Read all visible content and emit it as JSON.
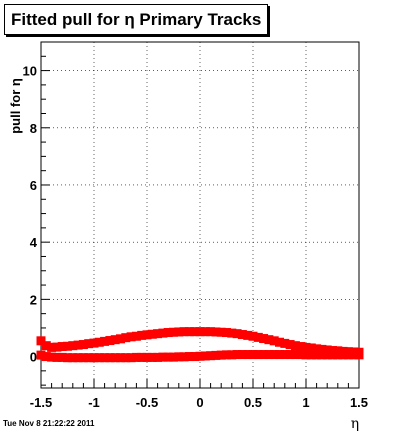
{
  "title": "Fitted pull for η  Primary Tracks",
  "timestamp": "Tue Nov  8 21:22:22 2011",
  "chart_data": {
    "type": "scatter",
    "title": "Fitted pull for η  Primary Tracks",
    "xlabel": "η",
    "ylabel": "pull for η",
    "xlim": [
      -1.5,
      1.5
    ],
    "ylim": [
      -1.1,
      11.0
    ],
    "xticks": [
      -1.5,
      -1,
      -0.5,
      0,
      0.5,
      1,
      1.5
    ],
    "xtick_labels": [
      "-1.5",
      "-1",
      "-0.5",
      "0",
      "0.5",
      "1",
      "1.5"
    ],
    "yticks": [
      0,
      2,
      4,
      6,
      8,
      10
    ],
    "ytick_labels": [
      "0",
      "2",
      "4",
      "6",
      "8",
      "10"
    ],
    "grid": true,
    "marker_color": "#ff0000",
    "series": [
      {
        "x": [
          -1.5,
          -1.45,
          -1.4,
          -1.35,
          -1.3,
          -1.25,
          -1.2,
          -1.15,
          -1.1,
          -1.05,
          -1.0,
          -0.95,
          -0.9,
          -0.85,
          -0.8,
          -0.75,
          -0.7,
          -0.65,
          -0.6,
          -0.55,
          -0.5,
          -0.45,
          -0.4,
          -0.35,
          -0.3,
          -0.25,
          -0.2,
          -0.15,
          -0.1,
          -0.05,
          0.0,
          0.05,
          0.1,
          0.15,
          0.2,
          0.25,
          0.3,
          0.35,
          0.4,
          0.45,
          0.5,
          0.55,
          0.6,
          0.65,
          0.7,
          0.75,
          0.8,
          0.85,
          0.9,
          0.95,
          1.0,
          1.05,
          1.1,
          1.15,
          1.2,
          1.25,
          1.3,
          1.35,
          1.4,
          1.45,
          1.5
        ],
        "y": [
          0.55,
          0.38,
          0.32,
          0.33,
          0.35,
          0.36,
          0.38,
          0.4,
          0.42,
          0.45,
          0.47,
          0.5,
          0.53,
          0.56,
          0.59,
          0.62,
          0.66,
          0.69,
          0.71,
          0.74,
          0.76,
          0.78,
          0.8,
          0.82,
          0.84,
          0.85,
          0.86,
          0.87,
          0.87,
          0.87,
          0.87,
          0.87,
          0.87,
          0.86,
          0.85,
          0.84,
          0.82,
          0.8,
          0.77,
          0.74,
          0.71,
          0.67,
          0.63,
          0.59,
          0.55,
          0.5,
          0.46,
          0.42,
          0.38,
          0.35,
          0.32,
          0.3,
          0.27,
          0.25,
          0.23,
          0.21,
          0.2,
          0.18,
          0.17,
          0.16,
          0.15
        ]
      },
      {
        "x": [
          -1.5,
          -1.45,
          -1.4,
          -1.35,
          -1.3,
          -1.25,
          -1.2,
          -1.15,
          -1.1,
          -1.05,
          -1.0,
          -0.95,
          -0.9,
          -0.85,
          -0.8,
          -0.75,
          -0.7,
          -0.65,
          -0.6,
          -0.55,
          -0.5,
          -0.45,
          -0.4,
          -0.35,
          -0.3,
          -0.25,
          -0.2,
          -0.15,
          -0.1,
          -0.05,
          0.0,
          0.05,
          0.1,
          0.15,
          0.2,
          0.25,
          0.3,
          0.35,
          0.4,
          0.45,
          0.5,
          0.55,
          0.6,
          0.65,
          0.7,
          0.75,
          0.8,
          0.85,
          0.9,
          0.95,
          1.0,
          1.05,
          1.1,
          1.15,
          1.2,
          1.25,
          1.3,
          1.35,
          1.4,
          1.45,
          1.5
        ],
        "y": [
          0.05,
          0.0,
          -0.02,
          -0.03,
          -0.03,
          -0.04,
          -0.04,
          -0.04,
          -0.04,
          -0.04,
          -0.04,
          -0.04,
          -0.04,
          -0.04,
          -0.04,
          -0.04,
          -0.04,
          -0.04,
          -0.03,
          -0.03,
          -0.03,
          -0.03,
          -0.03,
          -0.02,
          -0.02,
          -0.02,
          -0.01,
          -0.01,
          0.0,
          0.0,
          0.01,
          0.02,
          0.03,
          0.04,
          0.05,
          0.06,
          0.06,
          0.07,
          0.07,
          0.07,
          0.07,
          0.07,
          0.07,
          0.07,
          0.07,
          0.07,
          0.07,
          0.07,
          0.07,
          0.07,
          0.06,
          0.06,
          0.06,
          0.06,
          0.06,
          0.06,
          0.06,
          0.06,
          0.06,
          0.06,
          0.06
        ]
      }
    ]
  }
}
